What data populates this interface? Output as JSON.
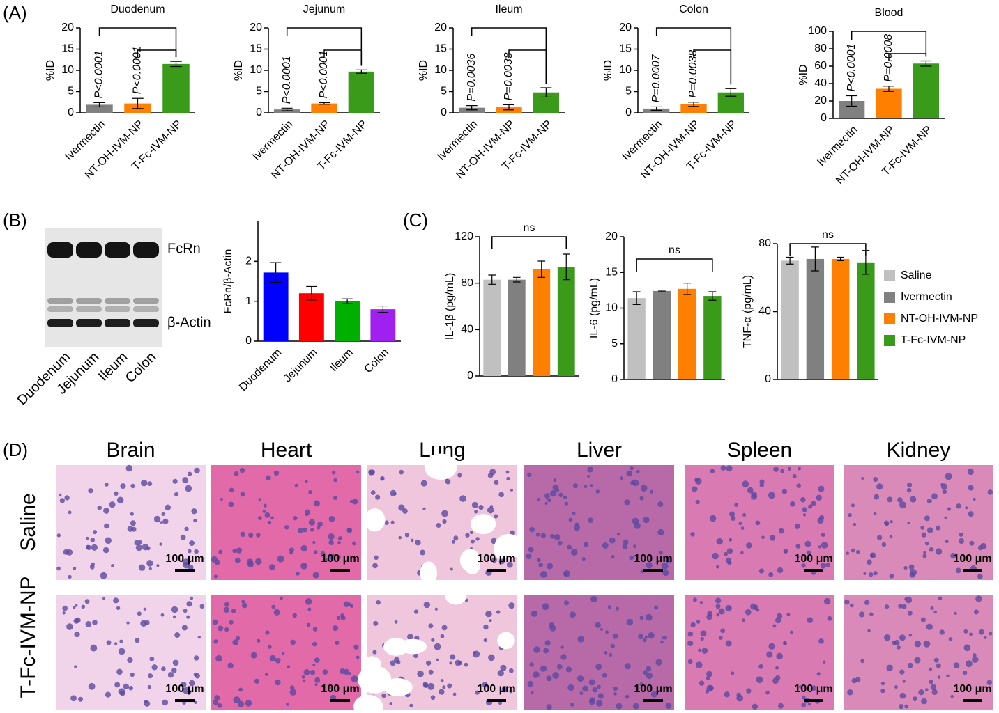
{
  "panel_labels": [
    "(A)",
    "(B)",
    "(C)",
    "(D)"
  ],
  "chart_data": [
    {
      "type": "bar",
      "title": "Duodenum",
      "y_label": "%ID",
      "categories": [
        "Ivermectin",
        "NT-OH-IVM-NP",
        "T-Fc-IVM-NP"
      ],
      "values": [
        1.9,
        2.2,
        11.5
      ],
      "errors": [
        0.5,
        1.2,
        0.6
      ],
      "colors": [
        "#808080",
        "#ff8000",
        "#3a9a1a"
      ],
      "ylim": [
        0,
        20
      ],
      "yticks": [
        0,
        5,
        10,
        15,
        20
      ],
      "annotations": [
        "P<0.0001",
        "P<0.0001"
      ]
    },
    {
      "type": "bar",
      "title": "Jejunum",
      "y_label": "%ID",
      "categories": [
        "Ivermectin",
        "NT-OH-IVM-NP",
        "T-Fc-IVM-NP"
      ],
      "values": [
        0.8,
        2.2,
        9.7
      ],
      "errors": [
        0.3,
        0.2,
        0.4
      ],
      "colors": [
        "#808080",
        "#ff8000",
        "#3a9a1a"
      ],
      "ylim": [
        0,
        20
      ],
      "yticks": [
        0,
        5,
        10,
        15,
        20
      ],
      "annotations": [
        "P<0.0001",
        "P<0.0001"
      ]
    },
    {
      "type": "bar",
      "title": "Ileum",
      "y_label": "%ID",
      "categories": [
        "Ivermectin",
        "NT-OH-IVM-NP",
        "T-Fc-IVM-NP"
      ],
      "values": [
        1.2,
        1.3,
        4.8
      ],
      "errors": [
        0.5,
        0.6,
        1.1
      ],
      "colors": [
        "#808080",
        "#ff8000",
        "#3a9a1a"
      ],
      "ylim": [
        0,
        20
      ],
      "yticks": [
        0,
        5,
        10,
        15,
        20
      ],
      "annotations": [
        "P=0.0036",
        "P=0.0038"
      ]
    },
    {
      "type": "bar",
      "title": "Colon",
      "y_label": "%ID",
      "categories": [
        "Ivermectin",
        "NT-OH-IVM-NP",
        "T-Fc-IVM-NP"
      ],
      "values": [
        1.0,
        2.0,
        4.8
      ],
      "errors": [
        0.4,
        0.5,
        0.9
      ],
      "colors": [
        "#808080",
        "#ff8000",
        "#3a9a1a"
      ],
      "ylim": [
        0,
        20
      ],
      "yticks": [
        0,
        5,
        10,
        15,
        20
      ],
      "annotations": [
        "P=0.0007",
        "P=0.0038"
      ]
    },
    {
      "type": "bar",
      "title": "Blood",
      "y_label": "%ID",
      "categories": [
        "Ivermectin",
        "NT-OH-IVM-NP",
        "T-Fc-IVM-NP"
      ],
      "values": [
        20,
        34,
        63
      ],
      "errors": [
        6,
        3,
        3
      ],
      "colors": [
        "#808080",
        "#ff8000",
        "#3a9a1a"
      ],
      "ylim": [
        0,
        100
      ],
      "yticks": [
        0,
        20,
        40,
        60,
        80,
        100
      ],
      "annotations": [
        "P<0.0001",
        "P=0.0008"
      ]
    },
    {
      "type": "bar",
      "y_label": "FcRn/β-Actin",
      "categories": [
        "Duodenum",
        "Jejunum",
        "Ileum",
        "Colon"
      ],
      "values": [
        1.72,
        1.2,
        1.0,
        0.8
      ],
      "errors": [
        0.25,
        0.17,
        0.06,
        0.08
      ],
      "colors": [
        "#0000ff",
        "#ff0000",
        "#00b000",
        "#a020f0"
      ],
      "ylim": [
        0,
        3
      ],
      "yticks": [
        0,
        1,
        2
      ]
    },
    {
      "type": "bar",
      "y_label": "IL-1β (pg/mL)",
      "categories": [
        null,
        null,
        null,
        null
      ],
      "values": [
        83,
        83,
        92,
        94
      ],
      "errors": [
        4,
        2,
        7,
        11
      ],
      "colors": [
        "#c0c0c0",
        "#808080",
        "#ff8000",
        "#3a9a1a"
      ],
      "ylim": [
        0,
        120
      ],
      "yticks": [
        0,
        40,
        80,
        120
      ],
      "annotations": [
        "ns"
      ]
    },
    {
      "type": "bar",
      "y_label": "IL-6 (pg/mL)",
      "categories": [
        null,
        null,
        null,
        null
      ],
      "values": [
        11.4,
        12.4,
        12.7,
        11.7
      ],
      "errors": [
        0.9,
        0.1,
        0.8,
        0.6
      ],
      "colors": [
        "#c0c0c0",
        "#808080",
        "#ff8000",
        "#3a9a1a"
      ],
      "ylim": [
        0,
        20
      ],
      "yticks": [
        0,
        5,
        10,
        15,
        20
      ],
      "annotations": [
        "ns"
      ]
    },
    {
      "type": "bar",
      "y_label": "TNF-α (pg/mL)",
      "categories": [
        null,
        null,
        null,
        null
      ],
      "values": [
        70,
        71,
        71,
        69
      ],
      "errors": [
        2,
        7,
        1,
        7
      ],
      "colors": [
        "#c0c0c0",
        "#808080",
        "#ff8000",
        "#3a9a1a"
      ],
      "ylim": [
        0,
        80
      ],
      "yticks": [
        0,
        40,
        80
      ],
      "annotations": [
        "ns"
      ]
    }
  ],
  "legend": {
    "items": [
      {
        "name": "Saline",
        "color": "#c0c0c0"
      },
      {
        "name": "Ivermectin",
        "color": "#808080"
      },
      {
        "name": "NT-OH-IVM-NP",
        "color": "#ff8000"
      },
      {
        "name": "T-Fc-IVM-NP",
        "color": "#3a9a1a"
      }
    ]
  },
  "blot": {
    "bands": [
      "FcRn",
      "β-Actin"
    ],
    "lanes": [
      "Duodenum",
      "Jejunum",
      "Ileum",
      "Colon"
    ]
  },
  "histology": {
    "columns": [
      "Brain",
      "Heart",
      "Lung",
      "Liver",
      "Spleen",
      "Kidney"
    ],
    "rows": [
      "Saline",
      "T-Fc-IVM-NP"
    ],
    "scale_bar": "100 μm"
  }
}
